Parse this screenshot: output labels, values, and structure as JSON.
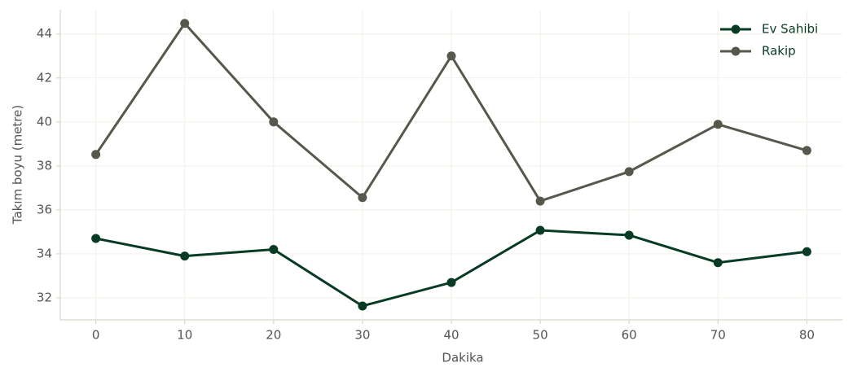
{
  "chart_data": {
    "type": "line",
    "x_label": "Dakika",
    "y_label": "Takım boyu (metre)",
    "x": [
      0,
      10,
      20,
      30,
      40,
      50,
      60,
      70,
      80
    ],
    "series": [
      {
        "name": "Ev Sahibi",
        "color": "#073b24",
        "values": [
          34.7,
          33.9,
          34.2,
          31.63,
          32.7,
          35.07,
          34.85,
          33.6,
          34.1
        ]
      },
      {
        "name": "Rakip",
        "color": "#57574c",
        "values": [
          38.52,
          44.48,
          40.0,
          36.56,
          43.0,
          36.4,
          37.74,
          39.89,
          38.7
        ]
      }
    ],
    "xlim": [
      -4,
      84
    ],
    "ylim": [
      31,
      45.1
    ],
    "xticks": [
      0,
      10,
      20,
      30,
      40,
      50,
      60,
      70,
      80
    ],
    "yticks": [
      32,
      34,
      36,
      38,
      40,
      42,
      44
    ],
    "grid": true,
    "legend": "upper right"
  }
}
